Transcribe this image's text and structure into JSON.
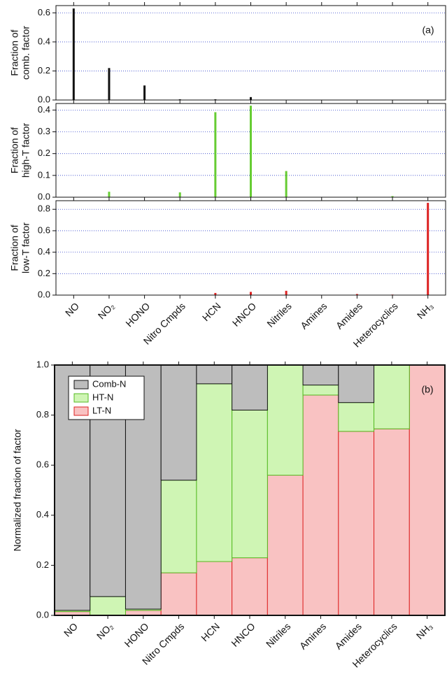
{
  "chart_data": [
    {
      "type": "bar",
      "ylabel": [
        "Fraction of",
        "comb. factor"
      ],
      "annotation": "(a)",
      "color": "#111111",
      "values": [
        0.63,
        0.22,
        0.1,
        0.005,
        0.005,
        0.02,
        0,
        0,
        0,
        0,
        0
      ],
      "ylim": [
        0,
        0.65
      ],
      "yticks": [
        {
          "value": 0,
          "label": "0.0"
        },
        0.2,
        0.4,
        0.6
      ],
      "grid": true
    },
    {
      "type": "bar",
      "ylabel": [
        "Fraction of",
        "high-T factor"
      ],
      "color": "#66cc33",
      "values": [
        0,
        0.025,
        0,
        0.022,
        0.39,
        0.42,
        0.12,
        0,
        0.002,
        0.005,
        0
      ],
      "ylim": [
        0,
        0.43
      ],
      "yticks": [
        {
          "value": 0,
          "label": "0.0"
        },
        0.1,
        0.2,
        0.3,
        0.4
      ],
      "grid": true
    },
    {
      "type": "bar",
      "ylabel": [
        "Fraction of",
        "low-T factor"
      ],
      "color": "#dd2222",
      "categories": [
        "NO",
        "NO₂",
        "HONO",
        "Nitro Cmpds",
        "HCN",
        "HNCO",
        "Nitriles",
        "Amines",
        "Amides",
        "Heterocyclics",
        "NH₃"
      ],
      "values": [
        0,
        0,
        0,
        0,
        0.02,
        0.03,
        0.04,
        0,
        0.01,
        0.005,
        0.86
      ],
      "ylim": [
        0,
        0.88
      ],
      "yticks": [
        {
          "value": 0,
          "label": "0.0"
        },
        0.2,
        0.4,
        0.6,
        0.8
      ],
      "grid": true
    },
    {
      "type": "stacked_bar",
      "ylabel": [
        "Normalized fraction of factor"
      ],
      "annotation": "(b)",
      "legend": "upper left",
      "categories": [
        "NO",
        "NO₂",
        "HONO",
        "Nitro Cmpds",
        "HCN",
        "HNCO",
        "Nitriles",
        "Amines",
        "Amides",
        "Heterocyclics",
        "NH₃"
      ],
      "series": [
        {
          "name": "Comb-N",
          "color": "#bdbdbd",
          "edgecolor": "#111111",
          "values": [
            0.98,
            0.925,
            0.975,
            0.46,
            0.075,
            0.18,
            0,
            0.08,
            0.15,
            0,
            0
          ]
        },
        {
          "name": "HT-N",
          "color": "#cff5b4",
          "edgecolor": "#55bb22",
          "values": [
            0.005,
            0.075,
            0.005,
            0.37,
            0.71,
            0.59,
            0.44,
            0.04,
            0.115,
            0.255,
            0
          ]
        },
        {
          "name": "LT-N",
          "color": "#f9c2c2",
          "edgecolor": "#dd2222",
          "values": [
            0.015,
            0,
            0.02,
            0.17,
            0.215,
            0.23,
            0.56,
            0.88,
            0.735,
            0.745,
            1.0
          ]
        }
      ],
      "ylim": [
        0,
        1
      ],
      "yticks": [
        {
          "value": 0,
          "label": "0.0"
        },
        0.2,
        0.4,
        0.6,
        0.8,
        {
          "value": 1,
          "label": "1.0"
        }
      ],
      "grid": false
    }
  ]
}
